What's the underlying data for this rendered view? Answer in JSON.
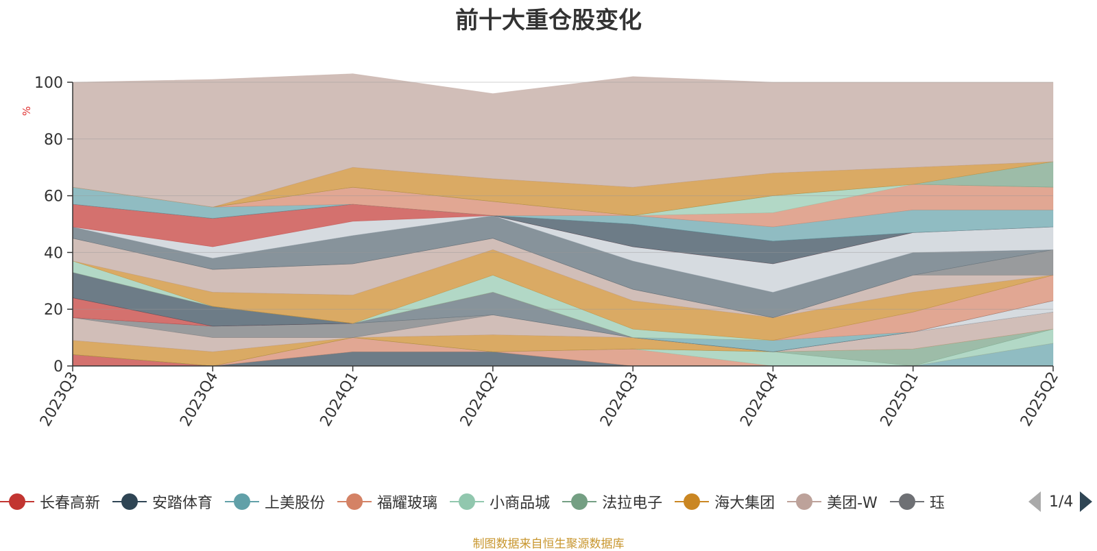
{
  "chart_data": {
    "type": "area",
    "title": "前十大重仓股变化",
    "ylabel": "%",
    "ylim": [
      0,
      100
    ],
    "yticks": [
      0,
      20,
      40,
      60,
      80,
      100
    ],
    "categories": [
      "2023Q3",
      "2023Q4",
      "2024Q1",
      "2024Q2",
      "2024Q3",
      "2024Q4",
      "2025Q1",
      "2025Q2"
    ],
    "grid": true,
    "legend_position": "bottom",
    "series": [
      {
        "name": "长春高新",
        "color": "#c23531",
        "values": [
          4,
          0,
          0,
          0,
          0,
          0,
          0,
          0
        ]
      },
      {
        "name": "安踏体育",
        "color": "#2f4554",
        "values": [
          0,
          0,
          5,
          5,
          0,
          0,
          0,
          0
        ]
      },
      {
        "name": "上美股份",
        "color": "#61a0a8",
        "values": [
          0,
          0,
          0,
          0,
          0,
          0,
          0,
          8
        ]
      },
      {
        "name": "福耀玻璃",
        "color": "#d48265",
        "values": [
          0,
          0,
          5,
          0,
          6,
          0,
          0,
          0
        ]
      },
      {
        "name": "小商品城",
        "color": "#91c7ae",
        "values": [
          0,
          0,
          0,
          0,
          0,
          5,
          0,
          5
        ]
      },
      {
        "name": "法拉电子",
        "color": "#749f83",
        "values": [
          0,
          0,
          0,
          0,
          0,
          0,
          6,
          0
        ]
      },
      {
        "name": "海大集团",
        "color": "#ca8622",
        "values": [
          5,
          5,
          0,
          6,
          4,
          0,
          0,
          0
        ]
      },
      {
        "name": "美团-W",
        "color": "#bda29a",
        "values": [
          8,
          5,
          0,
          7,
          0,
          0,
          6,
          6
        ]
      },
      {
        "name": "",
        "color": "#6e7074",
        "values": [
          0,
          4,
          5,
          0,
          0,
          0,
          0,
          0
        ]
      },
      {
        "name": "",
        "color": "#546570",
        "values": [
          0,
          0,
          0,
          8,
          0,
          0,
          0,
          0
        ]
      },
      {
        "name": "",
        "color": "#c4ccd3",
        "values": [
          0,
          0,
          0,
          0,
          0,
          0,
          0,
          4
        ]
      },
      {
        "name": "",
        "color": "#c23531",
        "values": [
          7,
          0,
          0,
          0,
          0,
          0,
          0,
          0
        ]
      },
      {
        "name": "",
        "color": "#2f4554",
        "values": [
          9,
          7,
          0,
          0,
          0,
          0,
          0,
          0
        ]
      },
      {
        "name": "",
        "color": "#61a0a8",
        "values": [
          0,
          0,
          0,
          0,
          0,
          4,
          0,
          0
        ]
      },
      {
        "name": "",
        "color": "#d48265",
        "values": [
          0,
          0,
          0,
          0,
          0,
          0,
          7,
          9
        ]
      },
      {
        "name": "",
        "color": "#91c7ae",
        "values": [
          4,
          0,
          0,
          6,
          3,
          0,
          0,
          0
        ]
      },
      {
        "name": "",
        "color": "#ca8622",
        "values": [
          0,
          5,
          10,
          9,
          10,
          8,
          7,
          0
        ]
      },
      {
        "name": "",
        "color": "#bda29a",
        "values": [
          8,
          8,
          11,
          4,
          4,
          0,
          6,
          0
        ]
      },
      {
        "name": "",
        "color": "#6e7074",
        "values": [
          0,
          0,
          0,
          0,
          0,
          0,
          0,
          9
        ]
      },
      {
        "name": "",
        "color": "#546570",
        "values": [
          4,
          4,
          10,
          8,
          10,
          9,
          8,
          0
        ]
      },
      {
        "name": "",
        "color": "#c4ccd3",
        "values": [
          0,
          4,
          5,
          0,
          5,
          10,
          7,
          8
        ]
      },
      {
        "name": "",
        "color": "#c23531",
        "values": [
          8,
          10,
          6,
          0,
          0,
          0,
          0,
          0
        ]
      },
      {
        "name": "",
        "color": "#2f4554",
        "values": [
          0,
          0,
          0,
          0,
          8,
          8,
          0,
          0
        ]
      },
      {
        "name": "",
        "color": "#61a0a8",
        "values": [
          6,
          4,
          0,
          0,
          3,
          5,
          8,
          6
        ]
      },
      {
        "name": "",
        "color": "#d48265",
        "values": [
          0,
          0,
          6,
          5,
          0,
          5,
          9,
          8
        ]
      },
      {
        "name": "",
        "color": "#91c7ae",
        "values": [
          0,
          0,
          0,
          0,
          0,
          6,
          0,
          0
        ]
      },
      {
        "name": "",
        "color": "#749f83",
        "values": [
          0,
          0,
          0,
          0,
          0,
          0,
          0,
          9
        ]
      },
      {
        "name": "",
        "color": "#ca8622",
        "values": [
          0,
          0,
          7,
          8,
          10,
          8,
          6,
          0
        ]
      },
      {
        "name": "",
        "color": "#bda29a",
        "values": [
          37,
          45,
          33,
          30,
          39,
          32,
          30,
          28
        ]
      }
    ]
  },
  "legend": {
    "items": [
      {
        "label": "长春高新",
        "color": "#c23531"
      },
      {
        "label": "安踏体育",
        "color": "#2f4554"
      },
      {
        "label": "上美股份",
        "color": "#61a0a8"
      },
      {
        "label": "福耀玻璃",
        "color": "#d48265"
      },
      {
        "label": "小商品城",
        "color": "#91c7ae"
      },
      {
        "label": "法拉电子",
        "color": "#749f83"
      },
      {
        "label": "海大集团",
        "color": "#ca8622"
      },
      {
        "label": "美团-W",
        "color": "#bda29a"
      },
      {
        "label": "珏",
        "color": "#6e7074"
      }
    ],
    "page": "1/4"
  },
  "footer": {
    "text": "制图数据来自恒生聚源数据库"
  }
}
